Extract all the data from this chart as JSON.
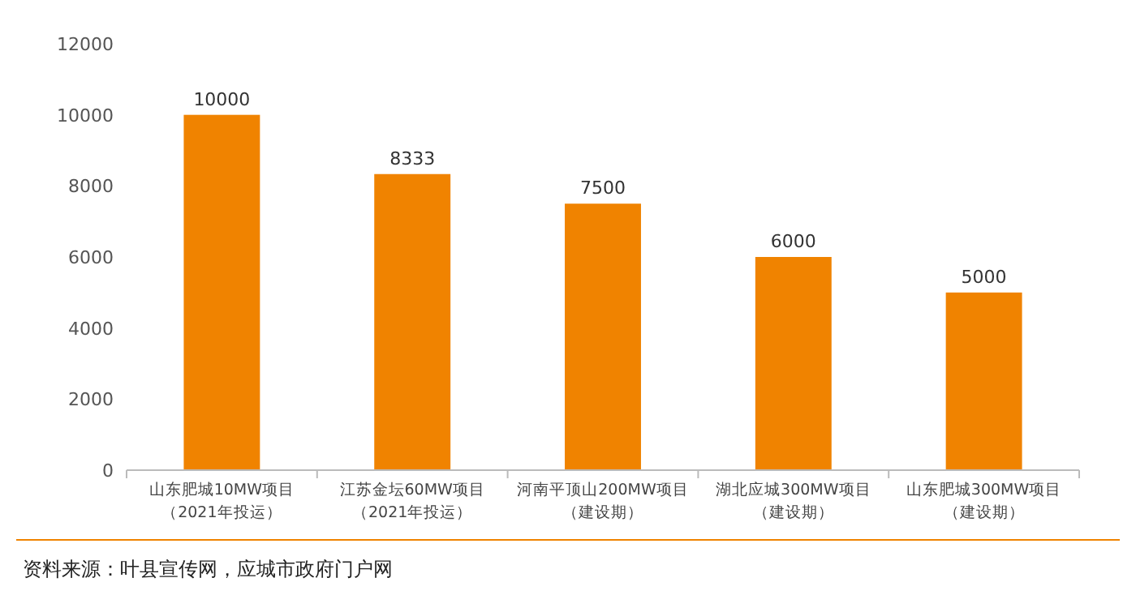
{
  "chart_data": {
    "type": "bar",
    "categories": [
      "山东肥城10MW项目（2021年投运）",
      "江苏金坛60MW项目（2021年投运）",
      "河南平顶山200MW项目（建设期）",
      "湖北应城300MW项目（建设期）",
      "山东肥城300MW项目（建设期）"
    ],
    "values": [
      10000,
      8333,
      7500,
      6000,
      5000
    ],
    "color": "#f08300",
    "ylim": [
      0,
      12000
    ],
    "yticks": [
      0,
      2000,
      4000,
      6000,
      8000,
      10000,
      12000
    ],
    "data_labels": true,
    "grid": false,
    "annotations": [
      "资料来源：叶县宣传网，应城市政府门户网"
    ]
  }
}
